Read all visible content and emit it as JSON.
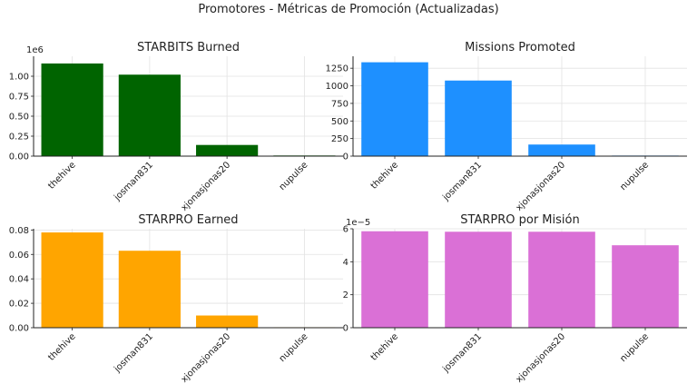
{
  "figure": {
    "title": "Promotores - Métricas de Promoción (Actualizadas)"
  },
  "chart_data": [
    {
      "type": "bar",
      "title": "STARBITS Burned",
      "categories": [
        "thehive",
        "josman831",
        "xjonasjonas20",
        "nupulse"
      ],
      "values": [
        1160000,
        1020000,
        140000,
        8000
      ],
      "ylim": [
        0,
        1250000
      ],
      "yticks": [
        0,
        250000,
        500000,
        750000,
        1000000
      ],
      "ytick_labels": [
        "0.00",
        "0.25",
        "0.50",
        "0.75",
        "1.00"
      ],
      "offset_label": "1e6",
      "color": "#006400",
      "grid": true
    },
    {
      "type": "bar",
      "title": "Missions Promoted",
      "categories": [
        "thehive",
        "josman831",
        "xjonasjonas20",
        "nupulse"
      ],
      "values": [
        1335,
        1075,
        165,
        8
      ],
      "ylim": [
        0,
        1420
      ],
      "yticks": [
        0,
        250,
        500,
        750,
        1000,
        1250
      ],
      "ytick_labels": [
        "0",
        "250",
        "500",
        "750",
        "1000",
        "1250"
      ],
      "offset_label": "",
      "color": "#1E90FF",
      "grid": true
    },
    {
      "type": "bar",
      "title": "STARPRO Earned",
      "categories": [
        "thehive",
        "josman831",
        "xjonasjonas20",
        "nupulse"
      ],
      "values": [
        0.078,
        0.063,
        0.01,
        0.0004
      ],
      "ylim": [
        0,
        0.081
      ],
      "yticks": [
        0,
        0.02,
        0.04,
        0.06,
        0.08
      ],
      "ytick_labels": [
        "0.00",
        "0.02",
        "0.04",
        "0.06",
        "0.08"
      ],
      "offset_label": "",
      "color": "#FFA500",
      "grid": true
    },
    {
      "type": "bar",
      "title": "STARPRO por Misión",
      "categories": [
        "thehive",
        "josman831",
        "xjonasjonas20",
        "nupulse"
      ],
      "values": [
        5.85e-05,
        5.82e-05,
        5.82e-05,
        5e-05
      ],
      "ylim": [
        0,
        6e-05
      ],
      "yticks": [
        0,
        2e-05,
        4e-05,
        6e-05
      ],
      "ytick_labels": [
        "0",
        "2",
        "4",
        "6"
      ],
      "offset_label": "1e−5",
      "color": "#DA70D6",
      "grid": true
    }
  ]
}
